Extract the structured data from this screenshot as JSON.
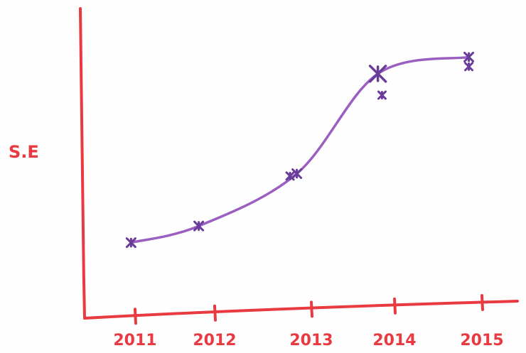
{
  "colors": {
    "axis": "#e83a40",
    "curve": "#9a5fc0",
    "marker": "#6a3c9a",
    "label": "#e83a40"
  },
  "chart_data": {
    "type": "line",
    "title": "",
    "xlabel": "",
    "ylabel": "S.E",
    "x_tick_labels": [
      "2011",
      "2012",
      "2013",
      "2014",
      "2015"
    ],
    "xlim": [
      2010.3,
      2015.3
    ],
    "ylim": [
      0,
      10
    ],
    "grid": false,
    "legend": "none",
    "series": [
      {
        "points": [
          {
            "x": 2010.95,
            "y": 2.1
          },
          {
            "x": 2011.8,
            "y": 2.8
          },
          {
            "x": 2012.85,
            "y": 5.0
          },
          {
            "x": 2013.8,
            "y": 9.2
          },
          {
            "x": 2014.85,
            "y": 9.9
          }
        ]
      }
    ],
    "scatter_marks": [
      {
        "x": 2012.78,
        "y": 4.9
      },
      {
        "x": 2013.85,
        "y": 8.3
      },
      {
        "x": 2014.85,
        "y": 9.5
      }
    ]
  }
}
